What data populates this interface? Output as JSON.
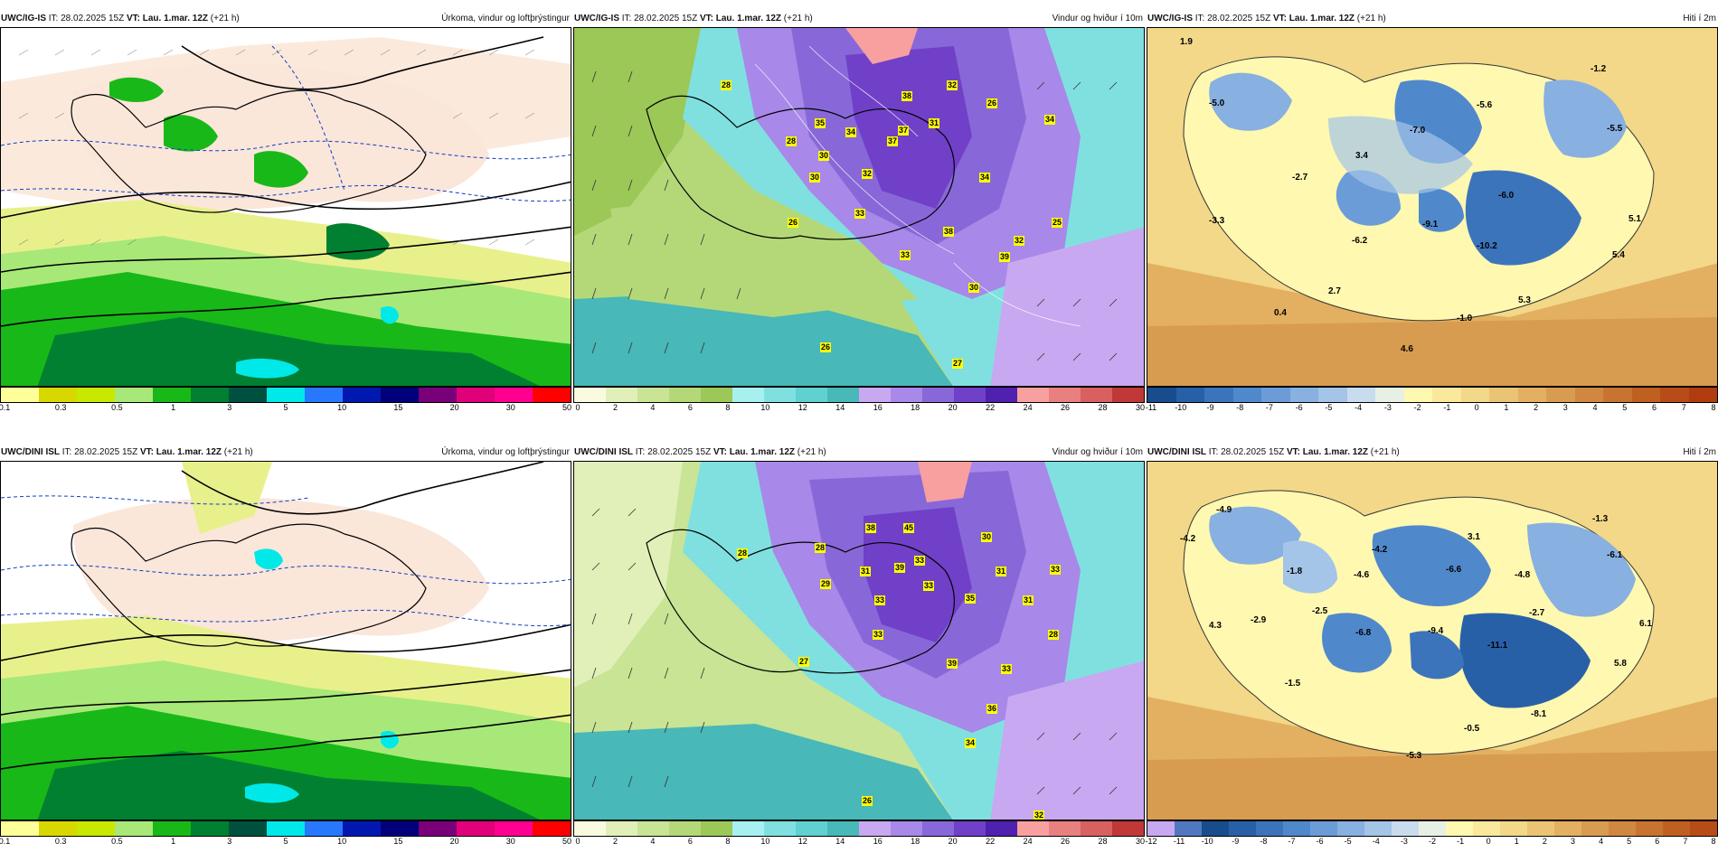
{
  "panels": [
    {
      "model": "UWC/IG-IS",
      "it": "IT: 28.02.2025 15Z",
      "vt": "VT: Lau. 1.mar. 12Z",
      "lead": "(+21 h)",
      "title": "Úrkoma, vindur og loftþrýstingur"
    },
    {
      "model": "UWC/IG-IS",
      "it": "IT: 28.02.2025 15Z",
      "vt": "VT: Lau. 1.mar. 12Z",
      "lead": "(+21 h)",
      "title": "Vindur og hviður í 10m"
    },
    {
      "model": "UWC/IG-IS",
      "it": "IT: 28.02.2025 15Z",
      "vt": "VT: Lau. 1.mar. 12Z",
      "lead": "(+21 h)",
      "title": "Hiti í 2m"
    },
    {
      "model": "UWC/DINI ISL",
      "it": "IT: 28.02.2025 15Z",
      "vt": "VT: Lau. 1.mar. 12Z",
      "lead": "(+21 h)",
      "title": "Úrkoma, vindur og loftþrýstingur"
    },
    {
      "model": "UWC/DINI ISL",
      "it": "IT: 28.02.2025 15Z",
      "vt": "VT: Lau. 1.mar. 12Z",
      "lead": "(+21 h)",
      "title": "Vindur og hviður í 10m"
    },
    {
      "model": "UWC/DINI ISL",
      "it": "IT: 28.02.2025 15Z",
      "vt": "VT: Lau. 1.mar. 12Z",
      "lead": "(+21 h)",
      "title": "Hiti í 2m"
    }
  ],
  "precip_scale": {
    "colors": [
      "#ffff9a",
      "#d8d800",
      "#c8e800",
      "#a8e878",
      "#18b818",
      "#008030",
      "#005040",
      "#00e8e8",
      "#2878ff",
      "#0018b0",
      "#00007a",
      "#780078",
      "#e0007a",
      "#ff0090",
      "#ff0000"
    ],
    "ticks": [
      "0.1",
      "0.3",
      "0.5",
      "1",
      "3",
      "5",
      "10",
      "15",
      "20",
      "30",
      "50"
    ]
  },
  "wind_scale": {
    "colors": [
      "#fafae0",
      "#e0f0b8",
      "#c8e494",
      "#b4d878",
      "#9cc858",
      "#a8f0f0",
      "#80e0e0",
      "#60d0d0",
      "#48b8b8",
      "#c8a8f0",
      "#a888e8",
      "#8868d8",
      "#7040c8",
      "#5020b0",
      "#f8a0a0",
      "#e88080",
      "#d86060",
      "#c03838"
    ],
    "ticks": [
      "0",
      "2",
      "4",
      "6",
      "8",
      "10",
      "12",
      "14",
      "16",
      "18",
      "20",
      "22",
      "24",
      "26",
      "28",
      "30"
    ]
  },
  "temp_scale_top": {
    "colors": [
      "#184c8c",
      "#2860a8",
      "#3c74bc",
      "#5088cc",
      "#6c9cd8",
      "#88b0e0",
      "#a4c4e8",
      "#c8dcee",
      "#e6f0e4",
      "#fff8b0",
      "#fae89c",
      "#f2d888",
      "#eac474",
      "#e2b060",
      "#d89c50",
      "#d08840",
      "#c87430",
      "#c06020",
      "#b84c18",
      "#b03c10"
    ],
    "ticks": [
      "-11",
      "-10",
      "-9",
      "-8",
      "-7",
      "-6",
      "-5",
      "-4",
      "-3",
      "-2",
      "-1",
      "0",
      "1",
      "2",
      "3",
      "4",
      "5",
      "6",
      "7",
      "8"
    ]
  },
  "temp_scale_bottom": {
    "colors": [
      "#c8a8f0",
      "#5078c0",
      "#184c8c",
      "#2860a8",
      "#3c74bc",
      "#5088cc",
      "#6c9cd8",
      "#88b0e0",
      "#a4c4e8",
      "#c8dcee",
      "#e6f0e4",
      "#fff8b0",
      "#fae89c",
      "#f2d888",
      "#eac474",
      "#e2b060",
      "#d89c50",
      "#d08840",
      "#c87430",
      "#c06020",
      "#b84c18"
    ],
    "ticks": [
      "-12",
      "-11",
      "-10",
      "-9",
      "-8",
      "-7",
      "-6",
      "-5",
      "-4",
      "-3",
      "-2",
      "-1",
      "0",
      "1",
      "2",
      "3",
      "4",
      "5",
      "6",
      "7",
      "8"
    ]
  },
  "temp_labels_top": [
    "1.9",
    "-1.2",
    "-5.0",
    "-5.6",
    "-7.0",
    "-5.5",
    "3.4",
    "-2.7",
    "-6.0",
    "-3.3",
    "-6.2",
    "-9.1",
    "-10.2",
    "5.1",
    "5.4",
    "2.7",
    "5.3",
    "0.4",
    "-1.0",
    "4.6"
  ],
  "temp_labels_bottom": [
    "-4.9",
    "-1.3",
    "-4.2",
    "3.1",
    "-4.2",
    "-6.6",
    "-6.1",
    "-1.8",
    "-4.6",
    "-4.8",
    "-2.7",
    "-2.9",
    "-2.5",
    "6.1",
    "4.3",
    "-6.8",
    "-9.4",
    "-11.1",
    "5.8",
    "-1.5",
    "-8.1",
    "-0.5",
    "-5.3"
  ],
  "wind_labels_top": [
    "28",
    "38",
    "32",
    "35",
    "37",
    "31",
    "26",
    "34",
    "28",
    "30",
    "32",
    "30",
    "34",
    "26",
    "33",
    "38",
    "32",
    "25",
    "39",
    "30",
    "26",
    "27",
    "33",
    "34",
    "37"
  ],
  "wind_labels_bottom": [
    "38",
    "45",
    "30",
    "28",
    "31",
    "39",
    "33",
    "31",
    "33",
    "29",
    "33",
    "35",
    "33",
    "31",
    "27",
    "33",
    "39",
    "33",
    "36",
    "28",
    "34",
    "26",
    "32",
    "28"
  ]
}
